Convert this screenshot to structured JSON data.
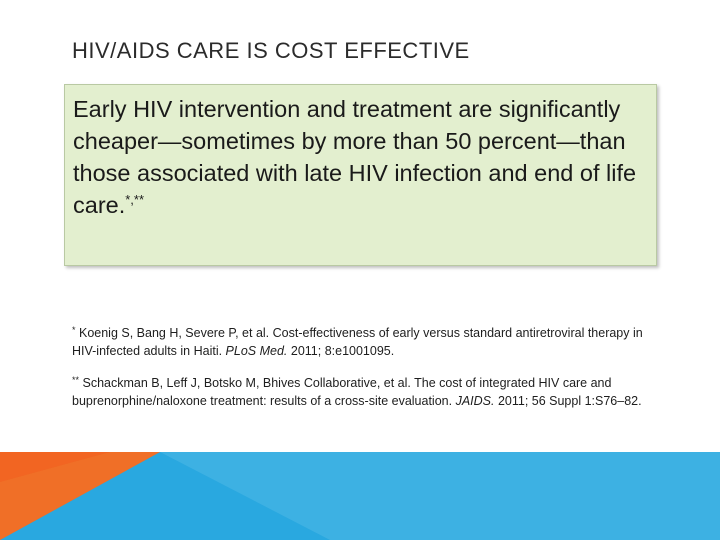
{
  "slide": {
    "title": "HIV/AIDS CARE IS COST EFFECTIVE",
    "callout": {
      "text": "Early HIV intervention and treatment are significantly cheaper—sometimes by more than 50 percent—than those associated with late HIV infection and end of life care.",
      "marker": "*,**"
    },
    "references": [
      {
        "marker": "*",
        "before": " Koenig S, Bang H, Severe P, et al. Cost-effectiveness of early versus standard antiretroviral therapy in HIV-infected adults in Haiti. ",
        "journal": "PLoS Med.",
        "after": " 2011; 8:e1001095."
      },
      {
        "marker": "**",
        "before": " Schackman B, Leff J, Botsko M, Bhives Collaborative, et al. The cost of integrated HIV care and buprenorphine/naloxone treatment: results of a cross-site evaluation. ",
        "journal": "JAIDS.",
        "after": " 2011; 56 Suppl 1:S76–82."
      }
    ]
  },
  "colors": {
    "callout_fill": "#e3efcf",
    "band_orange": "#f26522",
    "band_blue": "#29a8e0",
    "band_light_blue": "#6fc3ea"
  }
}
